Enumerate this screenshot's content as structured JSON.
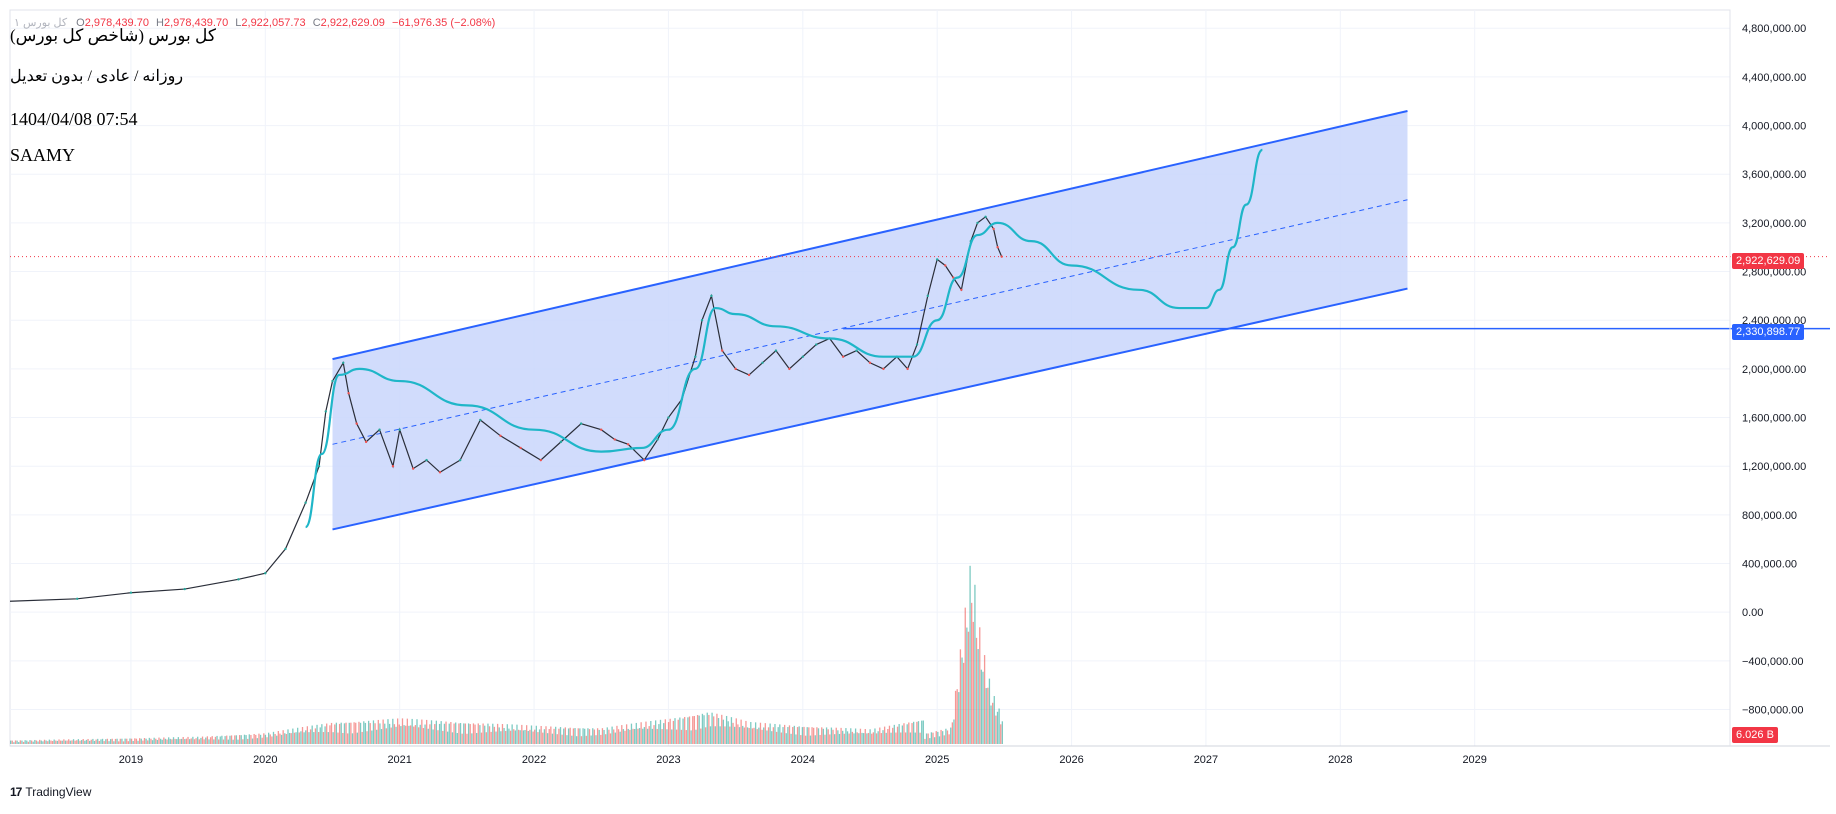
{
  "legend": {
    "symbol": "کل بورس ۱",
    "open_label": "O",
    "open": "2,978,439.70",
    "high_label": "H",
    "high": "2,978,439.70",
    "low_label": "L",
    "low": "2,922,057.73",
    "close_label": "C",
    "close": "2,922,629.09",
    "change": "−61,976.35 (−2.08%)"
  },
  "header": {
    "title": "کل بورس (شاخص کل بورس)",
    "subtitle": "روزانه / عادی / بدون تعدیل",
    "datetime": "1404/04/08 07:54",
    "author": "SAAMY"
  },
  "badges": {
    "last_price": "2,922,629.09",
    "line_level": "2,330,898.77",
    "volume": "6.026 B"
  },
  "footer": {
    "brand": "TradingView"
  },
  "colors": {
    "channel_line": "#2962ff",
    "channel_fill": "#c9d6fb",
    "projection": "#1fb6c8",
    "up": "#26a69a",
    "down": "#ef5350",
    "last_price": "#f23645",
    "grid": "#f0f3fa"
  },
  "chart_data": {
    "type": "line",
    "title": "کل بورس (شاخص کل بورس)",
    "xlabel": "",
    "ylabel": "",
    "x_ticks": [
      "2019",
      "2020",
      "2021",
      "2022",
      "2023",
      "2024",
      "2025",
      "2026",
      "2027",
      "2028",
      "2029"
    ],
    "y_ticks": [
      4800000,
      4400000,
      4000000,
      3600000,
      3200000,
      2800000,
      2400000,
      2000000,
      1600000,
      1200000,
      800000,
      400000,
      0,
      -400000,
      -800000
    ],
    "y_tick_labels": [
      "4,800,000.00",
      "4,400,000.00",
      "4,000,000.00",
      "3,600,000.00",
      "3,200,000.00",
      "2,800,000.00",
      "2,400,000.00",
      "2,000,000.00",
      "1,600,000.00",
      "1,200,000.00",
      "800,000.00",
      "400,000.00",
      "0.00",
      "−400,000.00",
      "−800,000.00"
    ],
    "ylim": [
      -1100000,
      4950000
    ],
    "xlim": [
      2018.1,
      2030.9
    ],
    "grid": true,
    "last_price": 2922629.09,
    "horizontal_level": 2330898.77,
    "series": [
      {
        "x": [
          2018.1,
          2018.6,
          2019.0,
          2019.4,
          2019.8,
          2020.0,
          2020.15,
          2020.3,
          2020.4,
          2020.45,
          2020.5,
          2020.58,
          2020.62,
          2020.68,
          2020.75,
          2020.85,
          2020.95,
          2021.0,
          2021.1,
          2021.2,
          2021.3,
          2021.45,
          2021.6,
          2021.75,
          2021.9,
          2022.05,
          2022.2,
          2022.35,
          2022.5,
          2022.6,
          2022.7,
          2022.82,
          2022.92,
          2023.0,
          2023.1,
          2023.2,
          2023.25,
          2023.32,
          2023.4,
          2023.5,
          2023.6,
          2023.7,
          2023.8,
          2023.9,
          2024.0,
          2024.1,
          2024.2,
          2024.3,
          2024.4,
          2024.5,
          2024.6,
          2024.7,
          2024.78,
          2024.85,
          2024.93,
          2025.0,
          2025.06,
          2025.12,
          2025.18,
          2025.25,
          2025.3,
          2025.36,
          2025.42,
          2025.45,
          2025.48
        ],
        "y": [
          90000,
          110000,
          160000,
          190000,
          270000,
          320000,
          520000,
          900000,
          1200000,
          1650000,
          1900000,
          2050000,
          1800000,
          1550000,
          1400000,
          1500000,
          1200000,
          1500000,
          1180000,
          1250000,
          1150000,
          1250000,
          1580000,
          1450000,
          1350000,
          1250000,
          1400000,
          1550000,
          1500000,
          1420000,
          1380000,
          1250000,
          1420000,
          1600000,
          1750000,
          2100000,
          2400000,
          2600000,
          2150000,
          2000000,
          1950000,
          2050000,
          2150000,
          2000000,
          2100000,
          2200000,
          2250000,
          2100000,
          2150000,
          2050000,
          2000000,
          2100000,
          2000000,
          2200000,
          2600000,
          2900000,
          2850000,
          2750000,
          2650000,
          3050000,
          3200000,
          3250000,
          3150000,
          3000000,
          2922629
        ]
      },
      {
        "x": [
          2020.3,
          2020.42,
          2020.55,
          2020.7,
          2021.0,
          2021.5,
          2022.0,
          2022.5,
          2022.8,
          2023.0,
          2023.2,
          2023.35,
          2023.5,
          2023.8,
          2024.2,
          2024.6,
          2024.82,
          2025.0,
          2025.15,
          2025.3,
          2025.45,
          2025.7,
          2026.0,
          2026.5,
          2026.8,
          2027.0,
          2027.1,
          2027.2,
          2027.3,
          2027.42
        ],
        "y": [
          700000,
          1300000,
          1950000,
          2000000,
          1900000,
          1700000,
          1500000,
          1320000,
          1350000,
          1500000,
          2000000,
          2500000,
          2450000,
          2350000,
          2250000,
          2100000,
          2100000,
          2400000,
          2750000,
          3100000,
          3200000,
          3050000,
          2850000,
          2650000,
          2500000,
          2500000,
          2650000,
          3000000,
          3350000,
          3800000
        ]
      }
    ],
    "channel": {
      "upper": {
        "x": [
          2020.5,
          2028.5
        ],
        "y": [
          2080000,
          4120000
        ]
      },
      "lower": {
        "x": [
          2020.5,
          2028.5
        ],
        "y": [
          680000,
          2660000
        ]
      },
      "median": {
        "x": [
          2020.5,
          2028.5
        ],
        "y": [
          1380000,
          3390000
        ]
      }
    },
    "volume": {
      "x": [
        2018.1,
        2019.0,
        2019.5,
        2020.0,
        2020.5,
        2021.0,
        2021.5,
        2022.0,
        2022.5,
        2023.0,
        2023.3,
        2023.6,
        2024.0,
        2024.5,
        2024.9,
        2025.1,
        2025.25,
        2025.32,
        2025.4,
        2025.48
      ],
      "y": [
        0.05,
        0.08,
        0.1,
        0.15,
        0.3,
        0.35,
        0.3,
        0.25,
        0.22,
        0.35,
        0.45,
        0.3,
        0.25,
        0.2,
        0.35,
        0.55,
        6.2,
        3.5,
        1.8,
        0.9
      ]
    }
  }
}
